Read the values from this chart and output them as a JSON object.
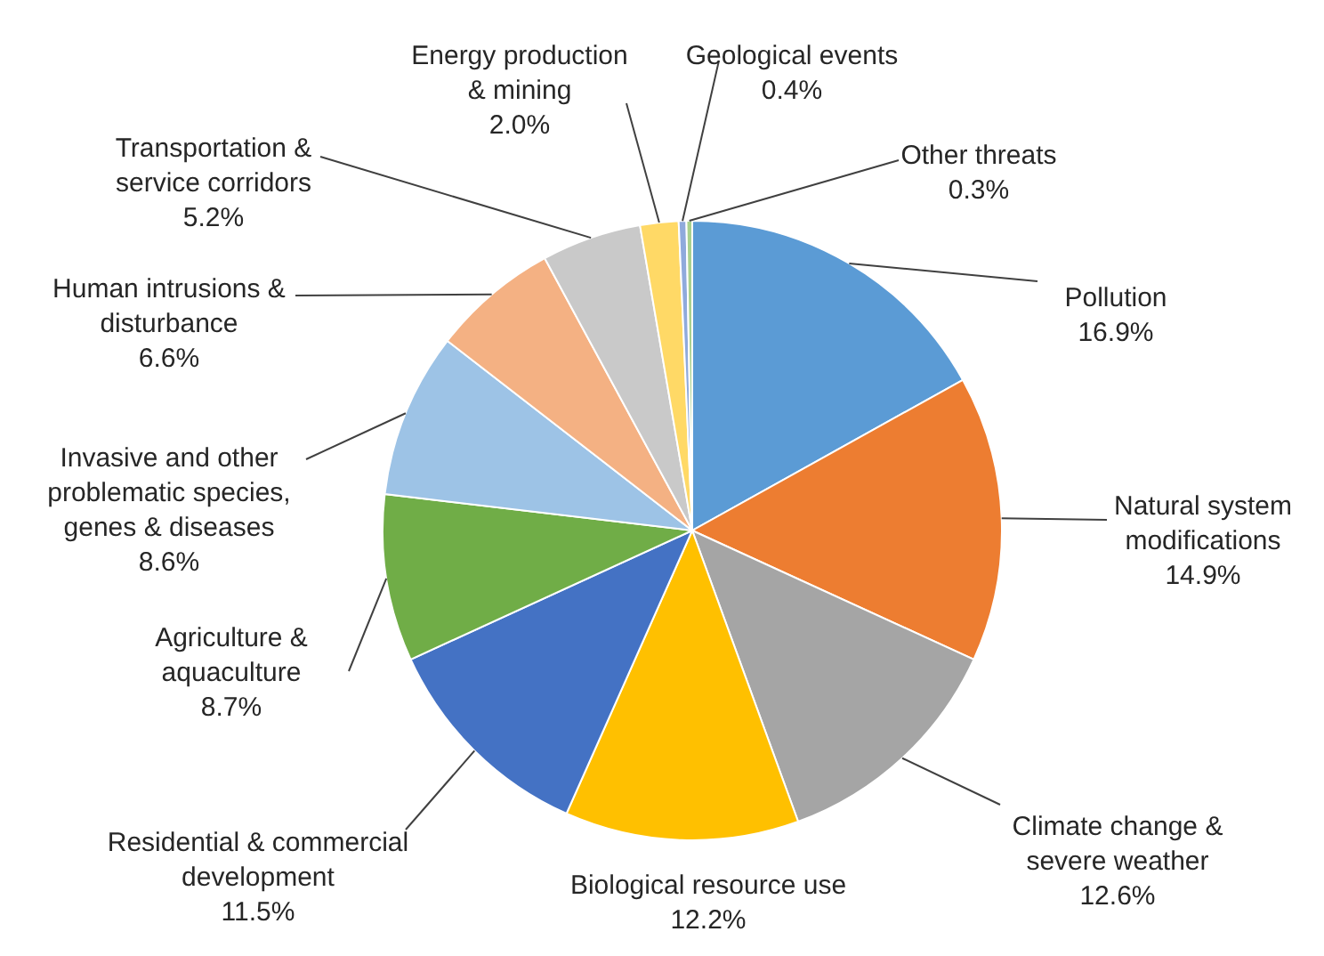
{
  "chart_data": {
    "type": "pie",
    "categories": [
      "Pollution",
      "Natural system modifications",
      "Climate change & severe weather",
      "Biological resource use",
      "Residential & commercial development",
      "Agriculture & aquaculture",
      "Invasive and other problematic species, genes & diseases",
      "Human intrusions & disturbance",
      "Transportation & service corridors",
      "Energy production & mining",
      "Geological events",
      "Other threats"
    ],
    "values": [
      16.9,
      14.9,
      12.6,
      12.2,
      11.5,
      8.7,
      8.6,
      6.6,
      5.2,
      2.0,
      0.4,
      0.3
    ],
    "value_labels": [
      "16.9%",
      "14.9%",
      "12.6%",
      "12.2%",
      "11.5%",
      "8.7%",
      "8.6%",
      "6.6%",
      "5.2%",
      "2.0%",
      "0.4%",
      "0.3%"
    ],
    "colors": [
      "#5b9bd5",
      "#ed7d31",
      "#a5a5a5",
      "#ffc000",
      "#4472c4",
      "#70ad47",
      "#9dc3e6",
      "#f4b183",
      "#c9c9c9",
      "#ffd966",
      "#8faadc",
      "#a9d18e"
    ]
  }
}
